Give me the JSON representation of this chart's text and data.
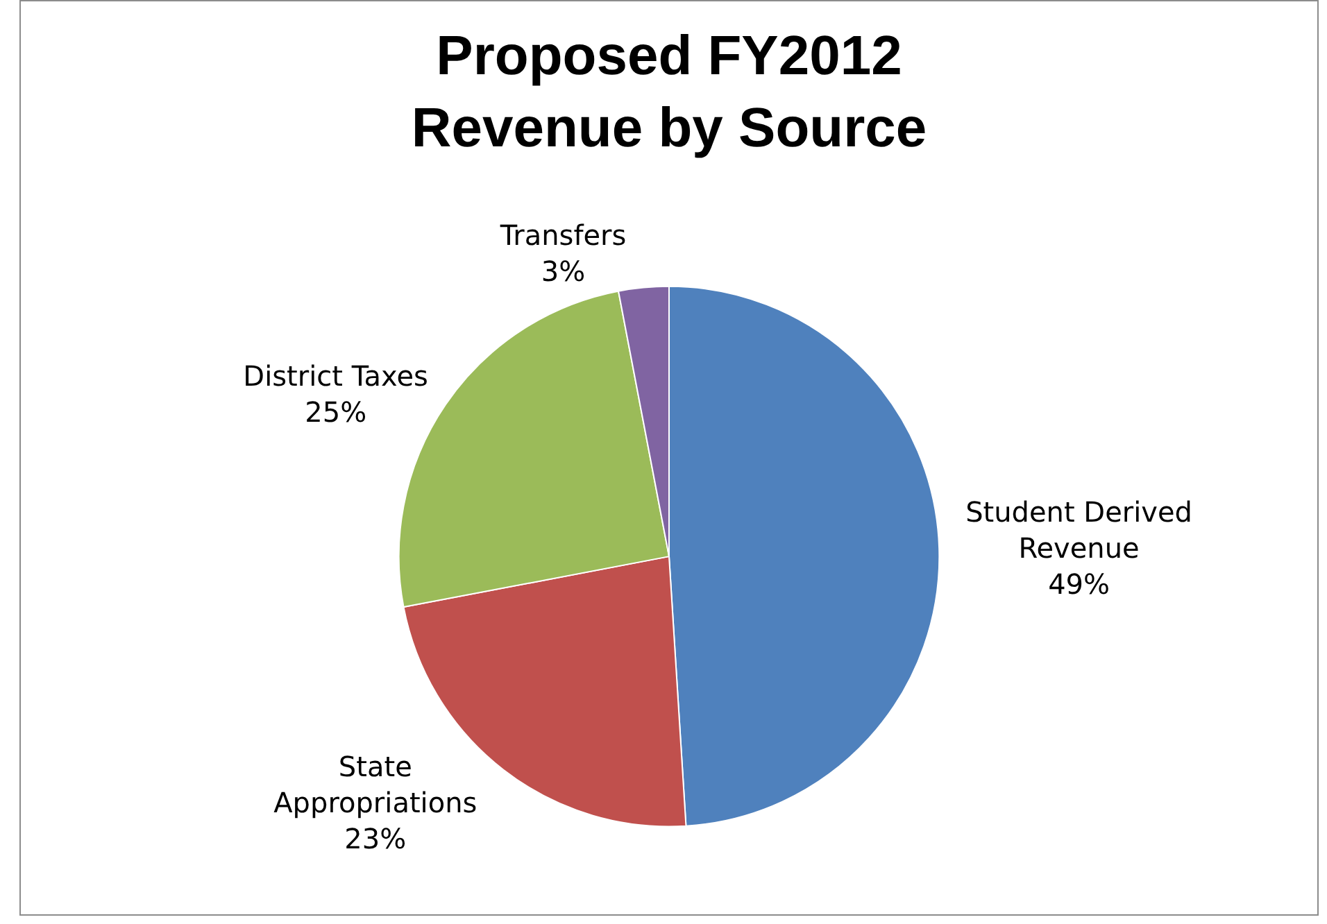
{
  "chart_data": {
    "type": "pie",
    "title": "Proposed FY2012 Revenue by Source",
    "categories": [
      "Student Derived Revenue",
      "State Appropriations",
      "District Taxes",
      "Transfers"
    ],
    "values": [
      49,
      23,
      25,
      3
    ],
    "value_labels": [
      "49%",
      "23%",
      "25%",
      "3%"
    ],
    "colors": [
      "#4f81bd",
      "#c0504d",
      "#9bbb59",
      "#8064a2"
    ],
    "legend": false
  }
}
